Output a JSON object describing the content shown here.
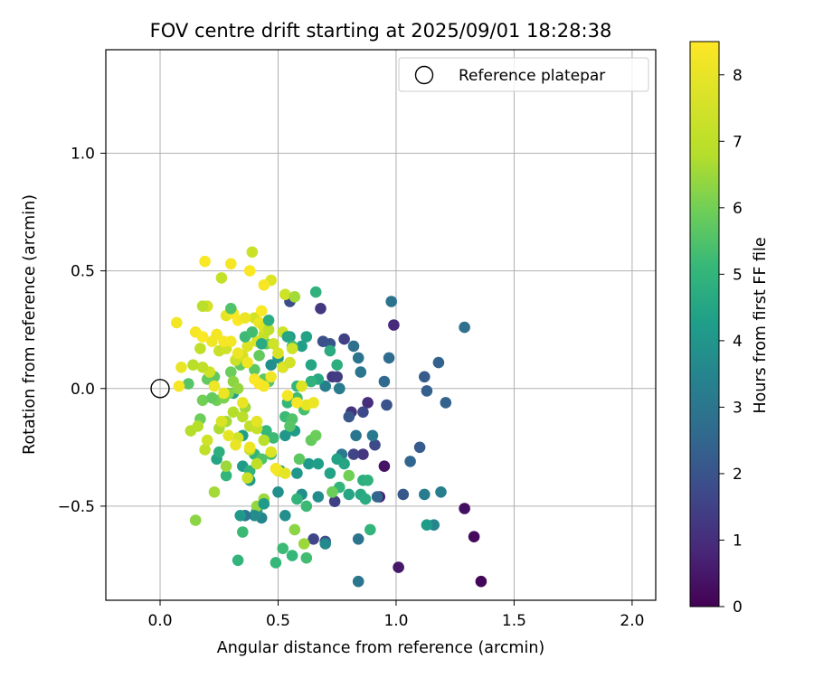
{
  "chart_data": {
    "type": "scatter",
    "title": "FOV centre drift starting at 2025/09/01 18:28:38",
    "xlabel": "Angular distance from reference (arcmin)",
    "ylabel": "Rotation from reference (arcmin)",
    "xlim": [
      -0.23,
      2.1
    ],
    "ylim": [
      -0.9,
      1.44
    ],
    "xticks": [
      0.0,
      0.5,
      1.0,
      1.5,
      2.0
    ],
    "xtick_labels": [
      "0.0",
      "0.5",
      "1.0",
      "1.5",
      "2.0"
    ],
    "yticks": [
      -0.5,
      0.0,
      0.5,
      1.0
    ],
    "ytick_labels": [
      "−0.5",
      "0.0",
      "0.5",
      "1.0"
    ],
    "grid": true,
    "legend": {
      "location": "top-right",
      "entries": [
        "Reference platepar"
      ]
    },
    "reference_point": {
      "x": 0.0,
      "y": 0.0,
      "label": "Reference platepar",
      "marker": "hollow-circle"
    },
    "colorbar": {
      "label": "Hours from first FF file",
      "colormap": "viridis",
      "range": [
        0,
        8.5
      ],
      "ticks": [
        0,
        1,
        2,
        3,
        4,
        5,
        6,
        7,
        8
      ],
      "tick_labels": [
        "0",
        "1",
        "2",
        "3",
        "4",
        "5",
        "6",
        "7",
        "8"
      ]
    },
    "points": [
      [
        1.36,
        -0.82,
        0.1
      ],
      [
        1.33,
        -0.63,
        0.2
      ],
      [
        1.29,
        -0.51,
        0.3
      ],
      [
        1.01,
        -0.76,
        0.5
      ],
      [
        0.95,
        -0.33,
        0.4
      ],
      [
        0.93,
        -0.46,
        0.6
      ],
      [
        0.99,
        0.27,
        0.9
      ],
      [
        0.88,
        -0.06,
        1.0
      ],
      [
        0.81,
        -0.1,
        1.1
      ],
      [
        0.86,
        -0.28,
        1.2
      ],
      [
        0.73,
        0.05,
        1.3
      ],
      [
        0.68,
        0.34,
        1.3
      ],
      [
        0.75,
        0.05,
        1.4
      ],
      [
        0.78,
        0.21,
        1.5
      ],
      [
        0.74,
        -0.48,
        1.5
      ],
      [
        0.82,
        -0.28,
        1.6
      ],
      [
        0.91,
        -0.24,
        1.7
      ],
      [
        0.86,
        -0.1,
        1.7
      ],
      [
        0.65,
        -0.64,
        1.6
      ],
      [
        0.7,
        -0.65,
        1.8
      ],
      [
        0.55,
        0.37,
        1.8
      ],
      [
        0.69,
        0.2,
        1.9
      ],
      [
        0.72,
        0.19,
        2.0
      ],
      [
        0.76,
        0.0,
        1.9
      ],
      [
        0.96,
        -0.07,
        2.0
      ],
      [
        0.8,
        -0.12,
        2.1
      ],
      [
        1.03,
        -0.45,
        2.1
      ],
      [
        1.1,
        -0.25,
        2.2
      ],
      [
        1.13,
        -0.01,
        2.3
      ],
      [
        1.18,
        0.11,
        2.4
      ],
      [
        1.12,
        0.05,
        2.2
      ],
      [
        1.21,
        -0.06,
        2.4
      ],
      [
        1.06,
        -0.31,
        2.5
      ],
      [
        0.92,
        -0.46,
        2.5
      ],
      [
        0.95,
        0.03,
        2.6
      ],
      [
        0.97,
        0.13,
        2.7
      ],
      [
        1.29,
        0.26,
        2.8
      ],
      [
        0.98,
        0.37,
        2.9
      ],
      [
        0.84,
        -0.64,
        2.9
      ],
      [
        0.84,
        -0.82,
        3.0
      ],
      [
        0.82,
        0.18,
        2.8
      ],
      [
        0.84,
        0.13,
        2.9
      ],
      [
        0.85,
        0.07,
        3.0
      ],
      [
        0.83,
        -0.2,
        3.0
      ],
      [
        0.9,
        -0.2,
        3.1
      ],
      [
        0.77,
        -0.28,
        3.1
      ],
      [
        0.76,
        0.0,
        3.2
      ],
      [
        0.7,
        0.01,
        3.3
      ],
      [
        1.12,
        -0.45,
        3.2
      ],
      [
        1.19,
        -0.44,
        3.3
      ],
      [
        1.16,
        -0.58,
        3.5
      ],
      [
        1.13,
        -0.58,
        4.2
      ],
      [
        0.7,
        -0.66,
        3.6
      ],
      [
        0.67,
        -0.46,
        3.7
      ],
      [
        0.6,
        -0.45,
        3.8
      ],
      [
        0.53,
        -0.54,
        3.8
      ],
      [
        0.51,
        -0.35,
        3.9
      ],
      [
        0.58,
        -0.36,
        4.0
      ],
      [
        0.53,
        -0.2,
        4.0
      ],
      [
        0.63,
        -0.32,
        4.1
      ],
      [
        0.57,
        -0.18,
        4.2
      ],
      [
        0.67,
        -0.32,
        4.3
      ],
      [
        0.72,
        -0.36,
        4.4
      ],
      [
        0.75,
        -0.3,
        4.4
      ],
      [
        0.78,
        -0.32,
        4.5
      ],
      [
        0.8,
        -0.45,
        4.5
      ],
      [
        0.85,
        -0.45,
        4.6
      ],
      [
        0.87,
        -0.47,
        4.7
      ],
      [
        0.86,
        -0.39,
        4.8
      ],
      [
        0.88,
        -0.39,
        4.9
      ],
      [
        0.89,
        -0.6,
        5.0
      ],
      [
        0.76,
        -0.42,
        5.0
      ],
      [
        0.73,
        -0.44,
        5.1
      ],
      [
        0.62,
        -0.5,
        5.2
      ],
      [
        0.58,
        -0.47,
        5.0
      ],
      [
        0.56,
        -0.71,
        5.1
      ],
      [
        0.52,
        -0.68,
        5.2
      ],
      [
        0.49,
        -0.74,
        5.1
      ],
      [
        0.62,
        -0.72,
        5.3
      ],
      [
        0.47,
        -0.28,
        5.3
      ],
      [
        0.43,
        -0.55,
        3.5
      ],
      [
        0.41,
        -0.52,
        4.0
      ],
      [
        0.38,
        -0.39,
        4.1
      ],
      [
        0.35,
        -0.33,
        4.2
      ],
      [
        0.35,
        -0.2,
        4.3
      ],
      [
        0.31,
        -0.02,
        4.4
      ],
      [
        0.33,
        -0.73,
        5.0
      ],
      [
        0.35,
        -0.61,
        5.2
      ],
      [
        0.38,
        -0.35,
        4.9
      ],
      [
        0.4,
        -0.28,
        5.0
      ],
      [
        0.45,
        -0.18,
        5.1
      ],
      [
        0.48,
        -0.21,
        5.2
      ],
      [
        0.24,
        -0.3,
        4.5
      ],
      [
        0.25,
        -0.27,
        4.8
      ],
      [
        0.28,
        -0.37,
        5.0
      ],
      [
        0.43,
        -0.3,
        5.5
      ],
      [
        0.47,
        0.1,
        3.8
      ],
      [
        0.5,
        0.13,
        4.0
      ],
      [
        0.55,
        0.22,
        4.2
      ],
      [
        0.6,
        0.18,
        4.3
      ],
      [
        0.62,
        0.22,
        4.4
      ],
      [
        0.64,
        0.1,
        4.5
      ],
      [
        0.67,
        0.04,
        4.6
      ],
      [
        0.72,
        0.16,
        4.7
      ],
      [
        0.75,
        0.1,
        4.8
      ],
      [
        0.64,
        0.03,
        4.9
      ],
      [
        0.58,
        0.01,
        5.0
      ],
      [
        0.54,
        -0.06,
        5.1
      ],
      [
        0.53,
        -0.12,
        5.2
      ],
      [
        0.58,
        -0.04,
        5.3
      ],
      [
        0.61,
        -0.09,
        5.4
      ],
      [
        0.56,
        -0.13,
        5.5
      ],
      [
        0.55,
        -0.16,
        5.6
      ],
      [
        0.59,
        -0.3,
        5.7
      ],
      [
        0.64,
        -0.22,
        5.8
      ],
      [
        0.66,
        -0.2,
        5.9
      ],
      [
        0.73,
        -0.44,
        5.9
      ],
      [
        0.8,
        -0.37,
        6.0
      ],
      [
        0.66,
        0.41,
        4.9
      ],
      [
        0.56,
        0.18,
        5.3
      ],
      [
        0.52,
        0.09,
        5.5
      ],
      [
        0.46,
        0.03,
        5.6
      ],
      [
        0.44,
        0.04,
        5.7
      ],
      [
        0.4,
        0.08,
        5.7
      ],
      [
        0.42,
        0.14,
        5.8
      ],
      [
        0.45,
        0.19,
        5.9
      ],
      [
        0.34,
        0.1,
        5.8
      ],
      [
        0.3,
        0.07,
        5.9
      ],
      [
        0.23,
        0.05,
        5.7
      ],
      [
        0.2,
        0.04,
        5.8
      ],
      [
        0.12,
        0.02,
        5.6
      ],
      [
        0.17,
        -0.13,
        5.9
      ],
      [
        0.24,
        -0.05,
        6.0
      ],
      [
        0.27,
        -0.04,
        6.1
      ],
      [
        0.29,
        -0.02,
        6.2
      ],
      [
        0.31,
        0.03,
        6.3
      ],
      [
        0.33,
        0.0,
        6.4
      ],
      [
        0.36,
        -0.08,
        6.5
      ],
      [
        0.28,
        -0.14,
        6.6
      ],
      [
        0.25,
        -0.17,
        6.7
      ],
      [
        0.31,
        -0.1,
        6.8
      ],
      [
        0.35,
        -0.12,
        6.9
      ],
      [
        0.38,
        -0.16,
        7.0
      ],
      [
        0.41,
        -0.17,
        7.1
      ],
      [
        0.44,
        -0.22,
        6.9
      ],
      [
        0.41,
        -0.32,
        7.0
      ],
      [
        0.38,
        -0.26,
        7.1
      ],
      [
        0.37,
        -0.38,
        7.2
      ],
      [
        0.33,
        -0.21,
        7.3
      ],
      [
        0.28,
        -0.33,
        6.5
      ],
      [
        0.44,
        -0.47,
        6.5
      ],
      [
        0.41,
        -0.5,
        6.4
      ],
      [
        0.57,
        -0.6,
        6.3
      ],
      [
        0.61,
        -0.66,
        6.5
      ],
      [
        0.15,
        -0.56,
        6.3
      ],
      [
        0.23,
        -0.44,
        6.6
      ],
      [
        0.16,
        -0.16,
        6.8
      ],
      [
        0.19,
        -0.26,
        7.0
      ],
      [
        0.2,
        -0.22,
        7.3
      ],
      [
        0.26,
        -0.14,
        7.5
      ],
      [
        0.29,
        -0.2,
        7.8
      ],
      [
        0.32,
        -0.24,
        7.9
      ],
      [
        0.35,
        -0.06,
        7.9
      ],
      [
        0.38,
        -0.25,
        8.0
      ],
      [
        0.41,
        -0.14,
        7.7
      ],
      [
        0.47,
        -0.27,
        7.6
      ],
      [
        0.5,
        -0.35,
        8.0
      ],
      [
        0.49,
        -0.34,
        8.2
      ],
      [
        0.53,
        -0.36,
        7.8
      ],
      [
        0.21,
        0.07,
        7.3
      ],
      [
        0.18,
        0.09,
        7.0
      ],
      [
        0.14,
        0.1,
        6.9
      ],
      [
        0.17,
        0.17,
        7.0
      ],
      [
        0.25,
        0.16,
        7.2
      ],
      [
        0.28,
        0.17,
        7.3
      ],
      [
        0.32,
        0.12,
        7.2
      ],
      [
        0.35,
        0.14,
        7.4
      ],
      [
        0.37,
        0.18,
        7.6
      ],
      [
        0.41,
        0.2,
        7.5
      ],
      [
        0.44,
        0.23,
        7.1
      ],
      [
        0.48,
        0.19,
        7.3
      ],
      [
        0.5,
        0.15,
        7.5
      ],
      [
        0.52,
        0.09,
        7.6
      ],
      [
        0.55,
        0.11,
        7.4
      ],
      [
        0.56,
        0.17,
        7.3
      ],
      [
        0.6,
        0.01,
        7.6
      ],
      [
        0.62,
        -0.07,
        7.8
      ],
      [
        0.65,
        -0.06,
        8.0
      ],
      [
        0.54,
        -0.03,
        8.2
      ],
      [
        0.58,
        -0.06,
        8.3
      ],
      [
        0.47,
        0.05,
        8.1
      ],
      [
        0.44,
        0.01,
        8.2
      ],
      [
        0.42,
        0.02,
        8.3
      ],
      [
        0.4,
        0.04,
        8.4
      ],
      [
        0.37,
        0.11,
        8.1
      ],
      [
        0.33,
        0.15,
        8.0
      ],
      [
        0.3,
        0.2,
        8.2
      ],
      [
        0.27,
        0.2,
        8.3
      ],
      [
        0.24,
        0.23,
        8.2
      ],
      [
        0.22,
        0.2,
        8.1
      ],
      [
        0.15,
        0.24,
        8.3
      ],
      [
        0.18,
        0.22,
        8.4
      ],
      [
        0.07,
        0.28,
        8.2
      ],
      [
        0.09,
        0.09,
        7.9
      ],
      [
        0.08,
        0.01,
        8.3
      ],
      [
        0.23,
        0.01,
        8.1
      ],
      [
        0.27,
        -0.02,
        8.0
      ],
      [
        0.4,
        0.3,
        7.4
      ],
      [
        0.42,
        0.28,
        8.0
      ],
      [
        0.44,
        0.26,
        7.6
      ],
      [
        0.46,
        0.25,
        7.0
      ],
      [
        0.52,
        0.24,
        7.3
      ],
      [
        0.53,
        0.4,
        7.3
      ],
      [
        0.57,
        0.39,
        6.6
      ],
      [
        0.47,
        0.46,
        7.6
      ],
      [
        0.44,
        0.44,
        8.3
      ],
      [
        0.38,
        0.5,
        8.4
      ],
      [
        0.39,
        0.58,
        7.2
      ],
      [
        0.3,
        0.53,
        8.3
      ],
      [
        0.26,
        0.47,
        7.1
      ],
      [
        0.19,
        0.54,
        8.4
      ],
      [
        0.2,
        0.35,
        7.4
      ],
      [
        0.18,
        0.35,
        6.9
      ],
      [
        0.28,
        0.31,
        7.8
      ],
      [
        0.31,
        0.32,
        8.3
      ],
      [
        0.33,
        0.29,
        8.5
      ],
      [
        0.36,
        0.3,
        8.0
      ],
      [
        0.43,
        0.33,
        8.4
      ],
      [
        0.3,
        0.34,
        5.5
      ],
      [
        0.36,
        0.22,
        5.2
      ],
      [
        0.39,
        0.24,
        5.3
      ],
      [
        0.13,
        -0.18,
        6.8
      ],
      [
        0.18,
        -0.05,
        6.0
      ],
      [
        0.22,
        -0.04,
        5.8
      ],
      [
        0.43,
        0.19,
        4.7
      ],
      [
        0.46,
        0.29,
        4.8
      ],
      [
        0.5,
        -0.44,
        3.8
      ],
      [
        0.44,
        -0.49,
        4.2
      ],
      [
        0.4,
        -0.54,
        3.7
      ],
      [
        0.36,
        -0.54,
        3.0
      ],
      [
        0.34,
        -0.54,
        4.1
      ],
      [
        0.54,
        0.22,
        4.5
      ]
    ]
  }
}
